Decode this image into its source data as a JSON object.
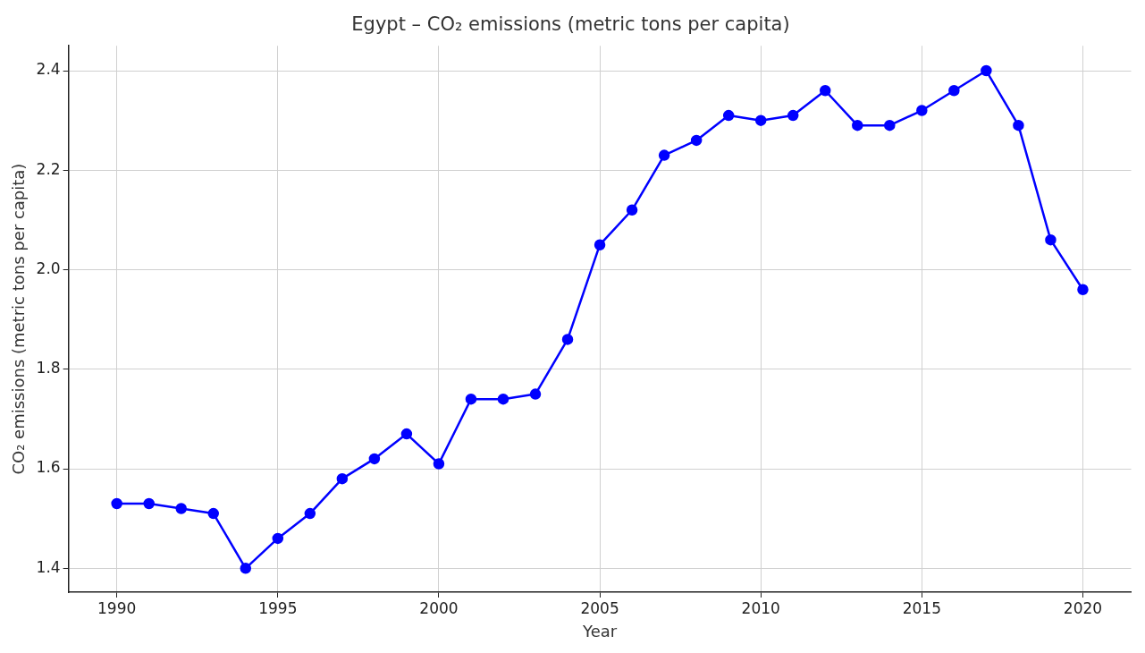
{
  "chart_data": {
    "type": "line",
    "title": "Egypt – CO₂ emissions (metric tons per capita)",
    "xlabel": "Year",
    "ylabel": "CO₂ emissions (metric tons per capita)",
    "x": [
      1990,
      1991,
      1992,
      1993,
      1994,
      1995,
      1996,
      1997,
      1998,
      1999,
      2000,
      2001,
      2002,
      2003,
      2004,
      2005,
      2006,
      2007,
      2008,
      2009,
      2010,
      2011,
      2012,
      2013,
      2014,
      2015,
      2016,
      2017,
      2018,
      2019,
      2020
    ],
    "series": [
      {
        "color": "#0000ff",
        "values": [
          1.53,
          1.53,
          1.52,
          1.51,
          1.4,
          1.46,
          1.51,
          1.58,
          1.62,
          1.67,
          1.61,
          1.74,
          1.74,
          1.75,
          1.86,
          2.05,
          2.12,
          2.23,
          2.26,
          2.31,
          2.3,
          2.31,
          2.36,
          2.29,
          2.29,
          2.32,
          2.36,
          2.4,
          2.29,
          2.06,
          1.96
        ]
      }
    ],
    "xlim": [
      1988.5,
      2021.5
    ],
    "xticks": [
      1990,
      1995,
      2000,
      2005,
      2010,
      2015,
      2020
    ],
    "ylim": [
      1.352,
      2.45
    ],
    "yticks": [
      1.4,
      1.6,
      1.8,
      {
        "value": 2,
        "label": "2.0"
      },
      2.2,
      2.4
    ],
    "grid": true,
    "marker": "circle",
    "line_style": "solid",
    "legend": false
  }
}
